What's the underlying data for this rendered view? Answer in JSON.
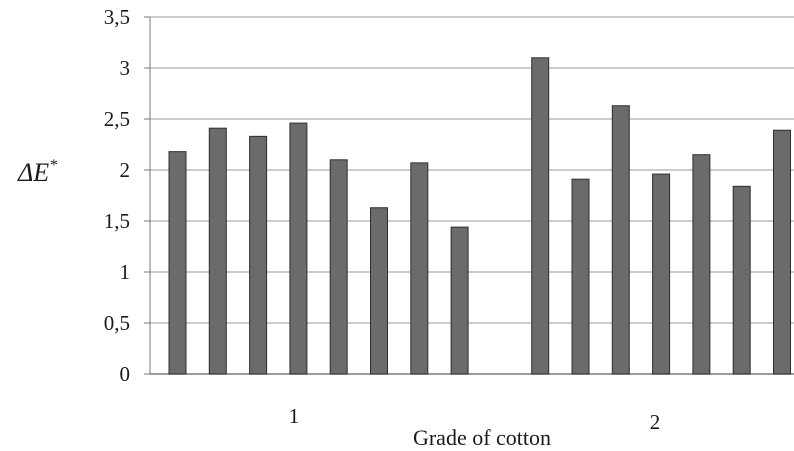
{
  "chart_data": {
    "type": "bar",
    "title": "",
    "xlabel": "Grade of cotton",
    "ylabel": "ΔE*",
    "ylim": [
      0,
      3.5
    ],
    "yticks": [
      "0",
      "0,5",
      "1",
      "1,5",
      "2",
      "2,5",
      "3",
      "3,5"
    ],
    "ytick_values": [
      0,
      0.5,
      1,
      1.5,
      2,
      2.5,
      3,
      3.5
    ],
    "grid": true,
    "legend": "none",
    "bar_color": "#6b6b6b",
    "categories": [
      "1",
      "2"
    ],
    "groups": [
      {
        "label": "1",
        "values": [
          2.18,
          2.41,
          2.33,
          2.46,
          2.1,
          1.63,
          2.07,
          1.44
        ]
      },
      {
        "label": "2",
        "values": [
          3.1,
          1.91,
          2.63,
          1.96,
          2.15,
          1.84,
          2.39
        ]
      }
    ]
  }
}
